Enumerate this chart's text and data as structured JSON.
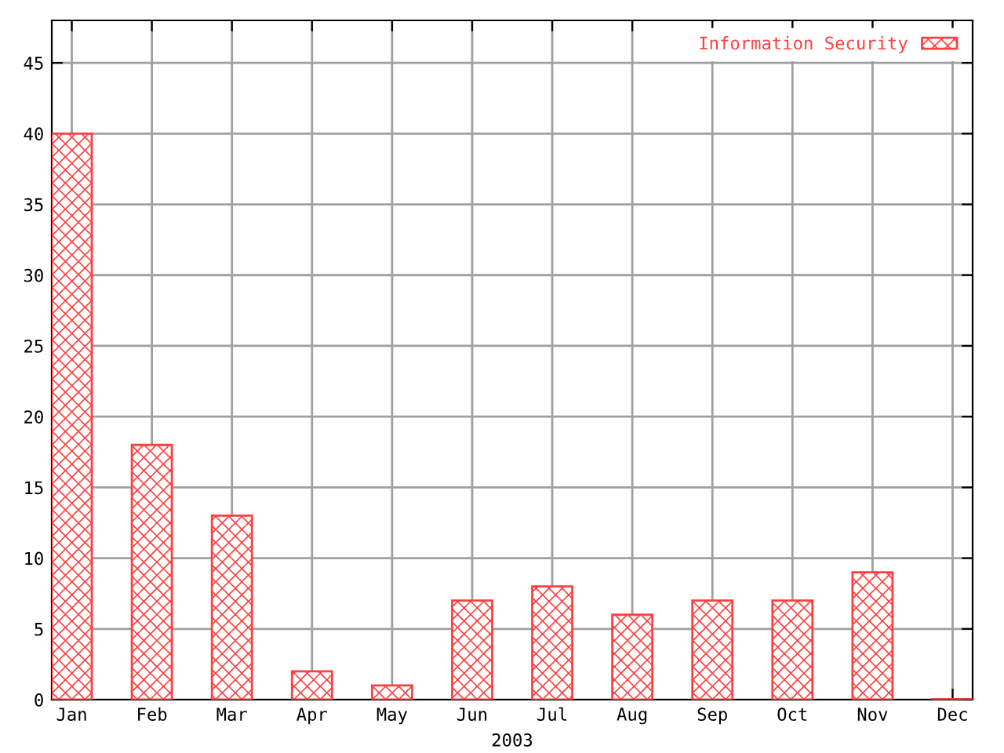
{
  "chart_data": {
    "type": "bar",
    "xlabel": "2003",
    "categories": [
      "Jan",
      "Feb",
      "Mar",
      "Apr",
      "May",
      "Jun",
      "Jul",
      "Aug",
      "Sep",
      "Oct",
      "Nov",
      "Dec"
    ],
    "series": [
      {
        "name": "Information Security",
        "color": "#ff4040",
        "values": [
          40,
          18,
          13,
          2,
          1,
          7,
          8,
          6,
          7,
          7,
          9,
          0
        ]
      }
    ],
    "ylim": [
      0,
      48
    ],
    "yticks": [
      0,
      5,
      10,
      15,
      20,
      25,
      30,
      35,
      40,
      45
    ],
    "grid": true,
    "legend": "top right"
  }
}
